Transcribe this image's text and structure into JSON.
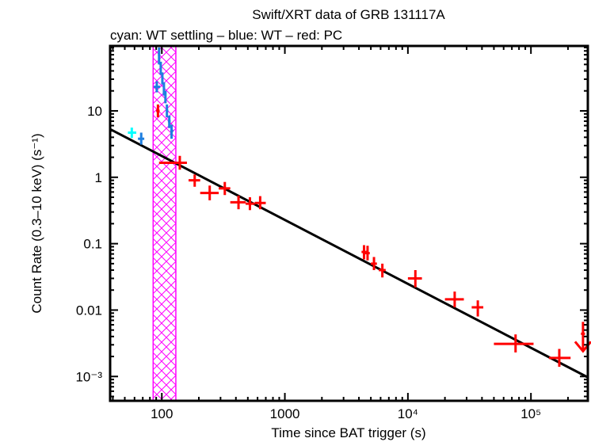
{
  "chart_data": {
    "type": "scatter",
    "title": "Swift/XRT data of GRB 131117A",
    "subtitle": "cyan: WT settling – blue: WT – red: PC",
    "xlabel": "Time since BAT trigger (s)",
    "ylabel": "Count Rate (0.3–10 keV) (s⁻¹)",
    "xscale": "log",
    "yscale": "log",
    "xlim": [
      38,
      290000
    ],
    "ylim": [
      0.00043,
      95
    ],
    "xticks": [
      {
        "v": 100,
        "label": "100"
      },
      {
        "v": 1000,
        "label": "1000"
      },
      {
        "v": 10000,
        "label": "10⁴"
      },
      {
        "v": 100000,
        "label": "10⁵"
      }
    ],
    "yticks": [
      {
        "v": 10,
        "label": "10"
      },
      {
        "v": 1,
        "label": "1"
      },
      {
        "v": 0.1,
        "label": "0.1"
      },
      {
        "v": 0.01,
        "label": "0.01"
      },
      {
        "v": 0.001,
        "label": "10⁻³"
      }
    ],
    "colors": {
      "wt_settling": "#00ffff",
      "wt": "#1e7fe0",
      "pc": "#ff0000",
      "fit": "#000000",
      "excluded": "#ff00ff"
    },
    "excluded_interval": [
      85,
      130
    ],
    "fit_line": {
      "x": [
        38,
        290000
      ],
      "y": [
        5.3,
        0.00097
      ]
    },
    "series": [
      {
        "name": "WT settling",
        "color": "#00ffff",
        "points": [
          {
            "x": 57,
            "xlo": 53,
            "xhi": 62,
            "y": 4.7,
            "ylo": 3.9,
            "yhi": 5.6
          }
        ]
      },
      {
        "name": "WT",
        "color": "#1e7fe0",
        "points": [
          {
            "x": 68,
            "xlo": 64,
            "xhi": 72,
            "y": 3.8,
            "ylo": 3.1,
            "yhi": 4.7
          },
          {
            "x": 91,
            "xlo": 86,
            "xhi": 97,
            "y": 23,
            "ylo": 19,
            "yhi": 28
          },
          {
            "x": 95,
            "xlo": 93,
            "xhi": 97,
            "y": 70,
            "ylo": 50,
            "yhi": 90
          },
          {
            "x": 98,
            "xlo": 96,
            "xhi": 100,
            "y": 45,
            "ylo": 35,
            "yhi": 55
          },
          {
            "x": 101,
            "xlo": 99,
            "xhi": 103,
            "y": 32,
            "ylo": 25,
            "yhi": 38
          },
          {
            "x": 104,
            "xlo": 102,
            "xhi": 106,
            "y": 22,
            "ylo": 17,
            "yhi": 27
          },
          {
            "x": 107,
            "xlo": 105,
            "xhi": 109,
            "y": 16,
            "ylo": 13,
            "yhi": 20
          },
          {
            "x": 110,
            "xlo": 108,
            "xhi": 113,
            "y": 10,
            "ylo": 8,
            "yhi": 12.5
          },
          {
            "x": 115,
            "xlo": 112,
            "xhi": 118,
            "y": 7,
            "ylo": 5.5,
            "yhi": 8.5
          },
          {
            "x": 120,
            "xlo": 117,
            "xhi": 124,
            "y": 5,
            "ylo": 3.8,
            "yhi": 6.2
          }
        ]
      },
      {
        "name": "PC",
        "color": "#ff0000",
        "points": [
          {
            "x": 93,
            "xlo": 90,
            "xhi": 96,
            "y": 10,
            "ylo": 8,
            "yhi": 12.5
          },
          {
            "x": 140,
            "xlo": 95,
            "xhi": 160,
            "y": 1.65,
            "ylo": 1.3,
            "yhi": 2.1
          },
          {
            "x": 185,
            "xlo": 165,
            "xhi": 205,
            "y": 0.9,
            "ylo": 0.72,
            "yhi": 1.1
          },
          {
            "x": 245,
            "xlo": 205,
            "xhi": 290,
            "y": 0.58,
            "ylo": 0.45,
            "yhi": 0.75
          },
          {
            "x": 325,
            "xlo": 290,
            "xhi": 360,
            "y": 0.68,
            "ylo": 0.54,
            "yhi": 0.85
          },
          {
            "x": 420,
            "xlo": 360,
            "xhi": 480,
            "y": 0.42,
            "ylo": 0.33,
            "yhi": 0.53
          },
          {
            "x": 520,
            "xlo": 480,
            "xhi": 570,
            "y": 0.4,
            "ylo": 0.32,
            "yhi": 0.5
          },
          {
            "x": 630,
            "xlo": 570,
            "xhi": 700,
            "y": 0.41,
            "ylo": 0.33,
            "yhi": 0.52
          },
          {
            "x": 4400,
            "xlo": 4200,
            "xhi": 4600,
            "y": 0.075,
            "ylo": 0.058,
            "yhi": 0.095
          },
          {
            "x": 4700,
            "xlo": 4500,
            "xhi": 4900,
            "y": 0.072,
            "ylo": 0.056,
            "yhi": 0.093
          },
          {
            "x": 5300,
            "xlo": 5000,
            "xhi": 5600,
            "y": 0.05,
            "ylo": 0.04,
            "yhi": 0.063
          },
          {
            "x": 6200,
            "xlo": 5800,
            "xhi": 6600,
            "y": 0.04,
            "ylo": 0.031,
            "yhi": 0.05
          },
          {
            "x": 11500,
            "xlo": 10000,
            "xhi": 13000,
            "y": 0.03,
            "ylo": 0.022,
            "yhi": 0.04
          },
          {
            "x": 24000,
            "xlo": 20000,
            "xhi": 28500,
            "y": 0.0145,
            "ylo": 0.011,
            "yhi": 0.019
          },
          {
            "x": 37000,
            "xlo": 33000,
            "xhi": 41000,
            "y": 0.011,
            "ylo": 0.008,
            "yhi": 0.014
          },
          {
            "x": 75000,
            "xlo": 50000,
            "xhi": 105000,
            "y": 0.0031,
            "ylo": 0.0023,
            "yhi": 0.0043
          },
          {
            "x": 170000,
            "xlo": 140000,
            "xhi": 210000,
            "y": 0.0019,
            "ylo": 0.0014,
            "yhi": 0.0026
          }
        ]
      },
      {
        "name": "PC upper limit",
        "color": "#ff0000",
        "upper_limits": [
          {
            "x": 265000,
            "xlo": 255000,
            "xhi": 275000,
            "y": 0.0044
          }
        ]
      }
    ]
  }
}
